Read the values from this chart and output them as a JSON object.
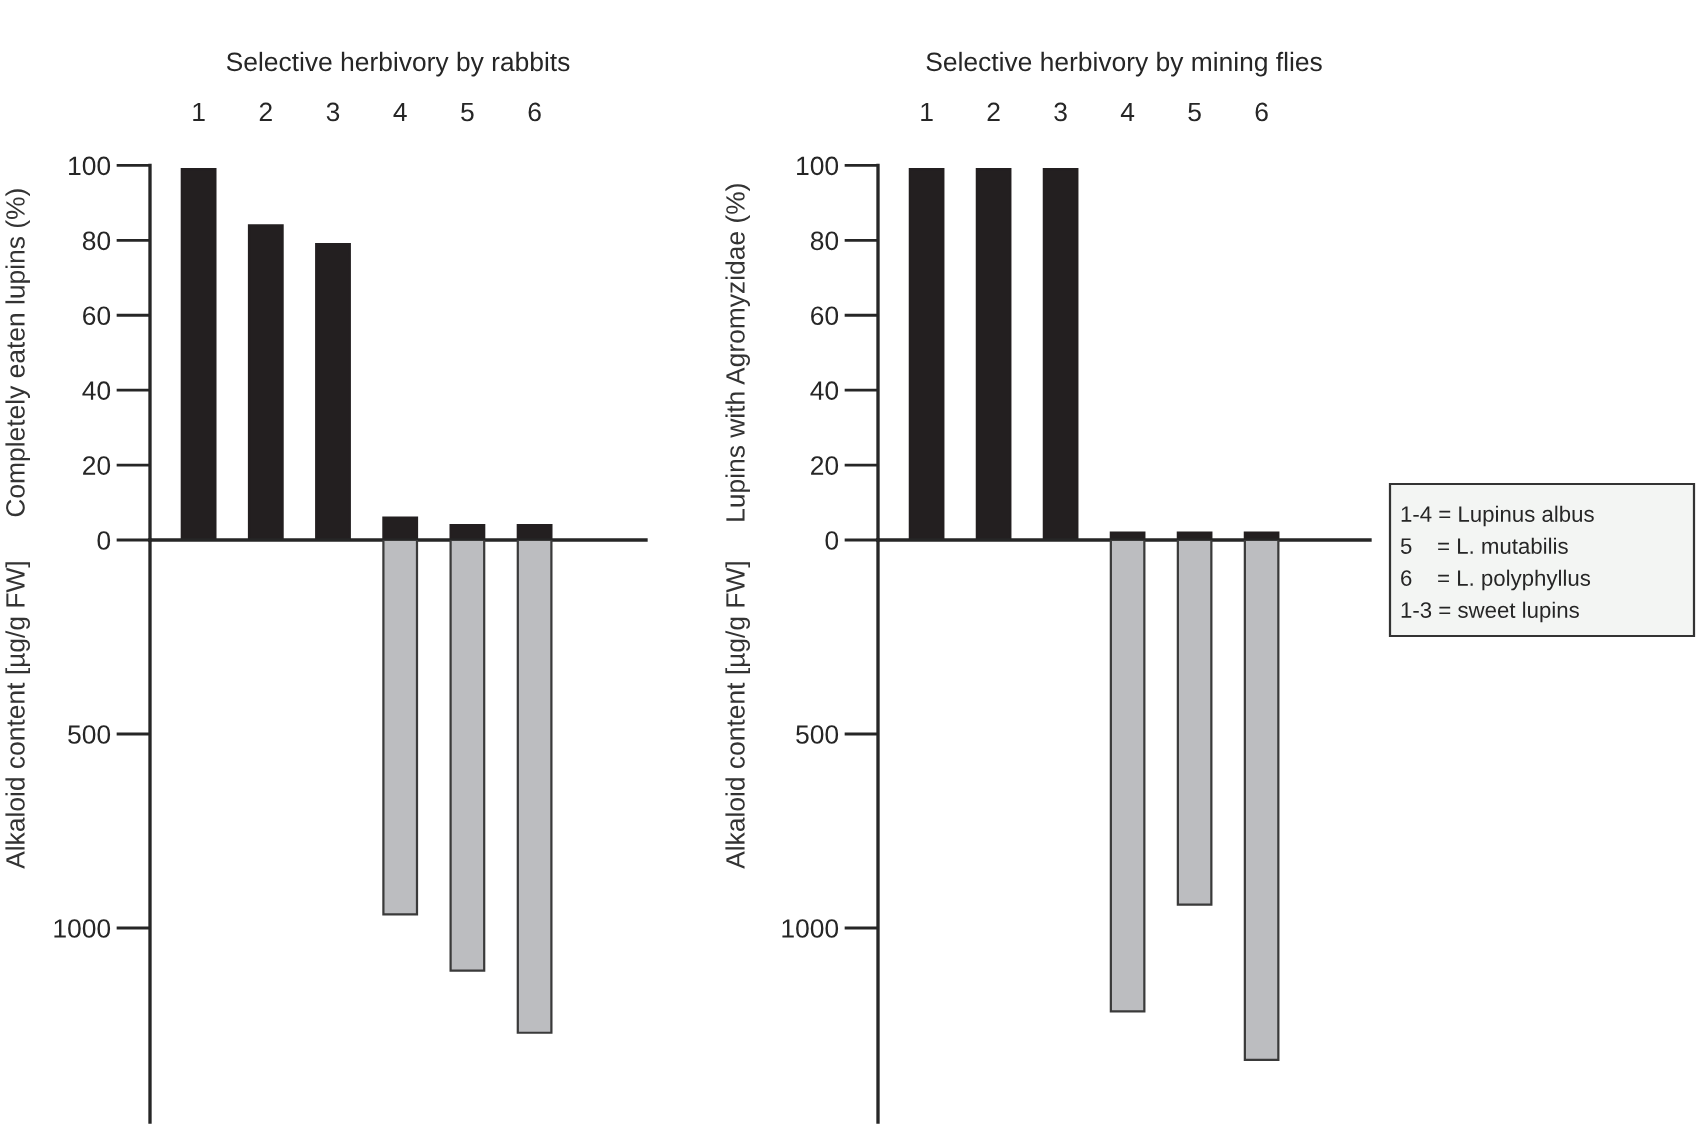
{
  "chart_data": [
    {
      "type": "bar",
      "title": "Selective herbivory by rabbits",
      "ylabel": "Completely eaten lupins (%)",
      "categories": [
        "1",
        "2",
        "3",
        "4",
        "5",
        "6"
      ],
      "series": [
        {
          "color": "#231f20",
          "values": [
            99,
            84,
            79,
            6,
            4,
            4
          ]
        }
      ],
      "ylim": [
        0,
        100
      ],
      "yticks": [
        0,
        20,
        40,
        60,
        80,
        100
      ],
      "grid": false,
      "legend": false
    },
    {
      "type": "bar",
      "ylabel": "Alkaloid content [µg/g FW]",
      "categories": [
        "1",
        "2",
        "3",
        "4",
        "5",
        "6"
      ],
      "tick_labels": "y",
      "series": [
        {
          "color": "#bcbdc0",
          "values": [
            null,
            null,
            null,
            965,
            1110,
            1270
          ]
        }
      ],
      "ylim": [
        1500,
        0
      ],
      "yticks": [
        500,
        1000
      ],
      "grid": false,
      "legend": false
    },
    {
      "type": "bar",
      "title": "Selective herbivory by mining flies",
      "ylabel": "Lupins with Agromyzidae (%)",
      "categories": [
        "1",
        "2",
        "3",
        "4",
        "5",
        "6"
      ],
      "series": [
        {
          "color": "#231f20",
          "values": [
            99,
            99,
            99,
            2,
            2,
            2
          ]
        }
      ],
      "ylim": [
        0,
        100
      ],
      "yticks": [
        0,
        20,
        40,
        60,
        80,
        100
      ],
      "grid": false,
      "legend": false
    },
    {
      "type": "bar",
      "ylabel": "Alkaloid content [µg/g FW]",
      "categories": [
        "1",
        "2",
        "3",
        "4",
        "5",
        "6"
      ],
      "tick_labels": "y",
      "series": [
        {
          "color": "#bcbdc0",
          "values": [
            null,
            null,
            null,
            1215,
            940,
            1340
          ]
        }
      ],
      "ylim": [
        1500,
        0
      ],
      "yticks": [
        500,
        1000
      ],
      "grid": false,
      "legend": false
    },
    {
      "type": "other",
      "annotations": [
        "1-4 = Lupinus albus",
        "5    = L. mutabilis",
        "6    = L. polyphyllus",
        "1-3 = sweet lupins"
      ]
    }
  ]
}
